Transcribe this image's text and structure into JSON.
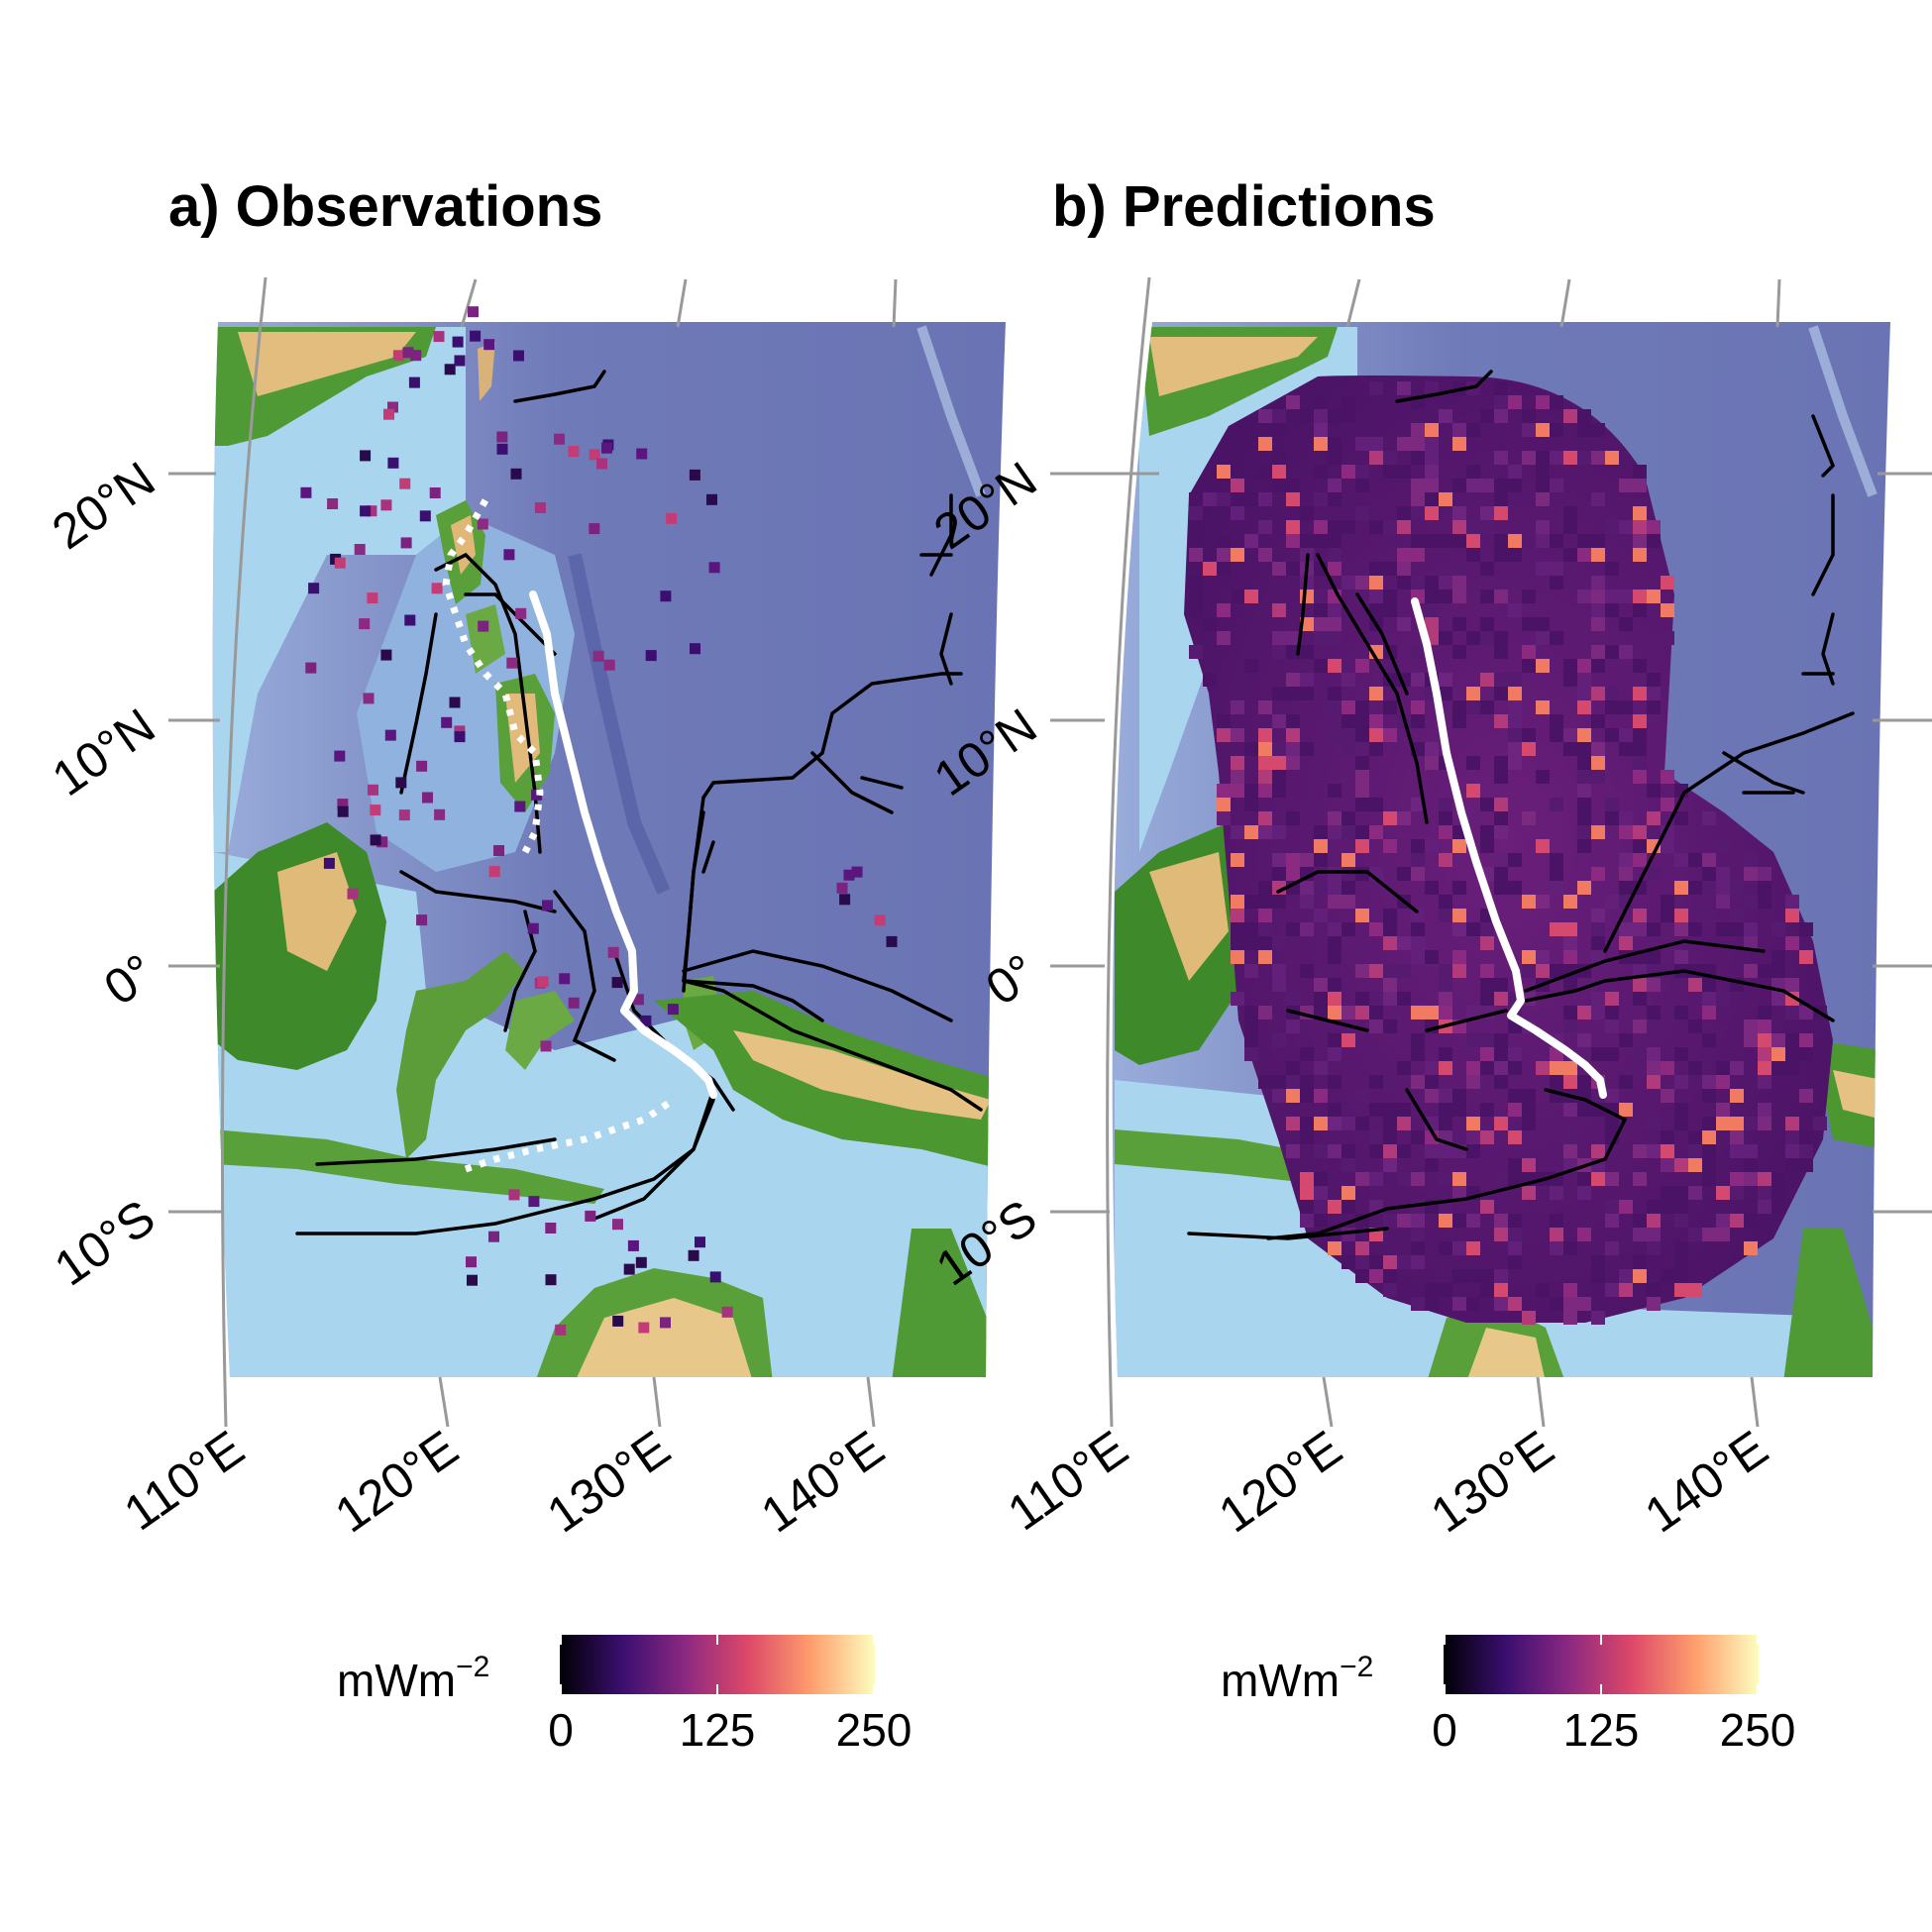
{
  "panels": [
    {
      "title": "a) Observations",
      "kind": "observations",
      "lat_ticks": [
        "20°N",
        "10°N",
        "0°",
        "10°S"
      ],
      "lon_ticks": [
        "110°E",
        "120°E",
        "130°E",
        "140°E"
      ],
      "colorbar": {
        "unit_base": "mWm",
        "unit_exp": "−2",
        "ticks": [
          "0",
          "125",
          "250"
        ]
      }
    },
    {
      "title": "b) Predictions",
      "kind": "predictions",
      "lat_ticks": [
        "20°N",
        "10°N",
        "0°",
        "10°S"
      ],
      "lon_ticks": [
        "110°E",
        "120°E",
        "130°E",
        "140°E"
      ],
      "colorbar": {
        "unit_base": "mWm",
        "unit_exp": "−2",
        "ticks": [
          "0",
          "125",
          "250"
        ]
      }
    }
  ],
  "colors": {
    "ocean_deep": "#6f78b8",
    "ocean_shallow": "#a9d6ee",
    "land_low": "#3e8a2a",
    "land_high": "#e8c88a",
    "trench_line": "#000000",
    "track_line": "#ffffff",
    "grid": "#999999"
  },
  "colormap": [
    "#000004",
    "#3b0f70",
    "#8c2981",
    "#de4968",
    "#fe9f6d",
    "#fcfdbf"
  ],
  "value_range": [
    0,
    250
  ]
}
